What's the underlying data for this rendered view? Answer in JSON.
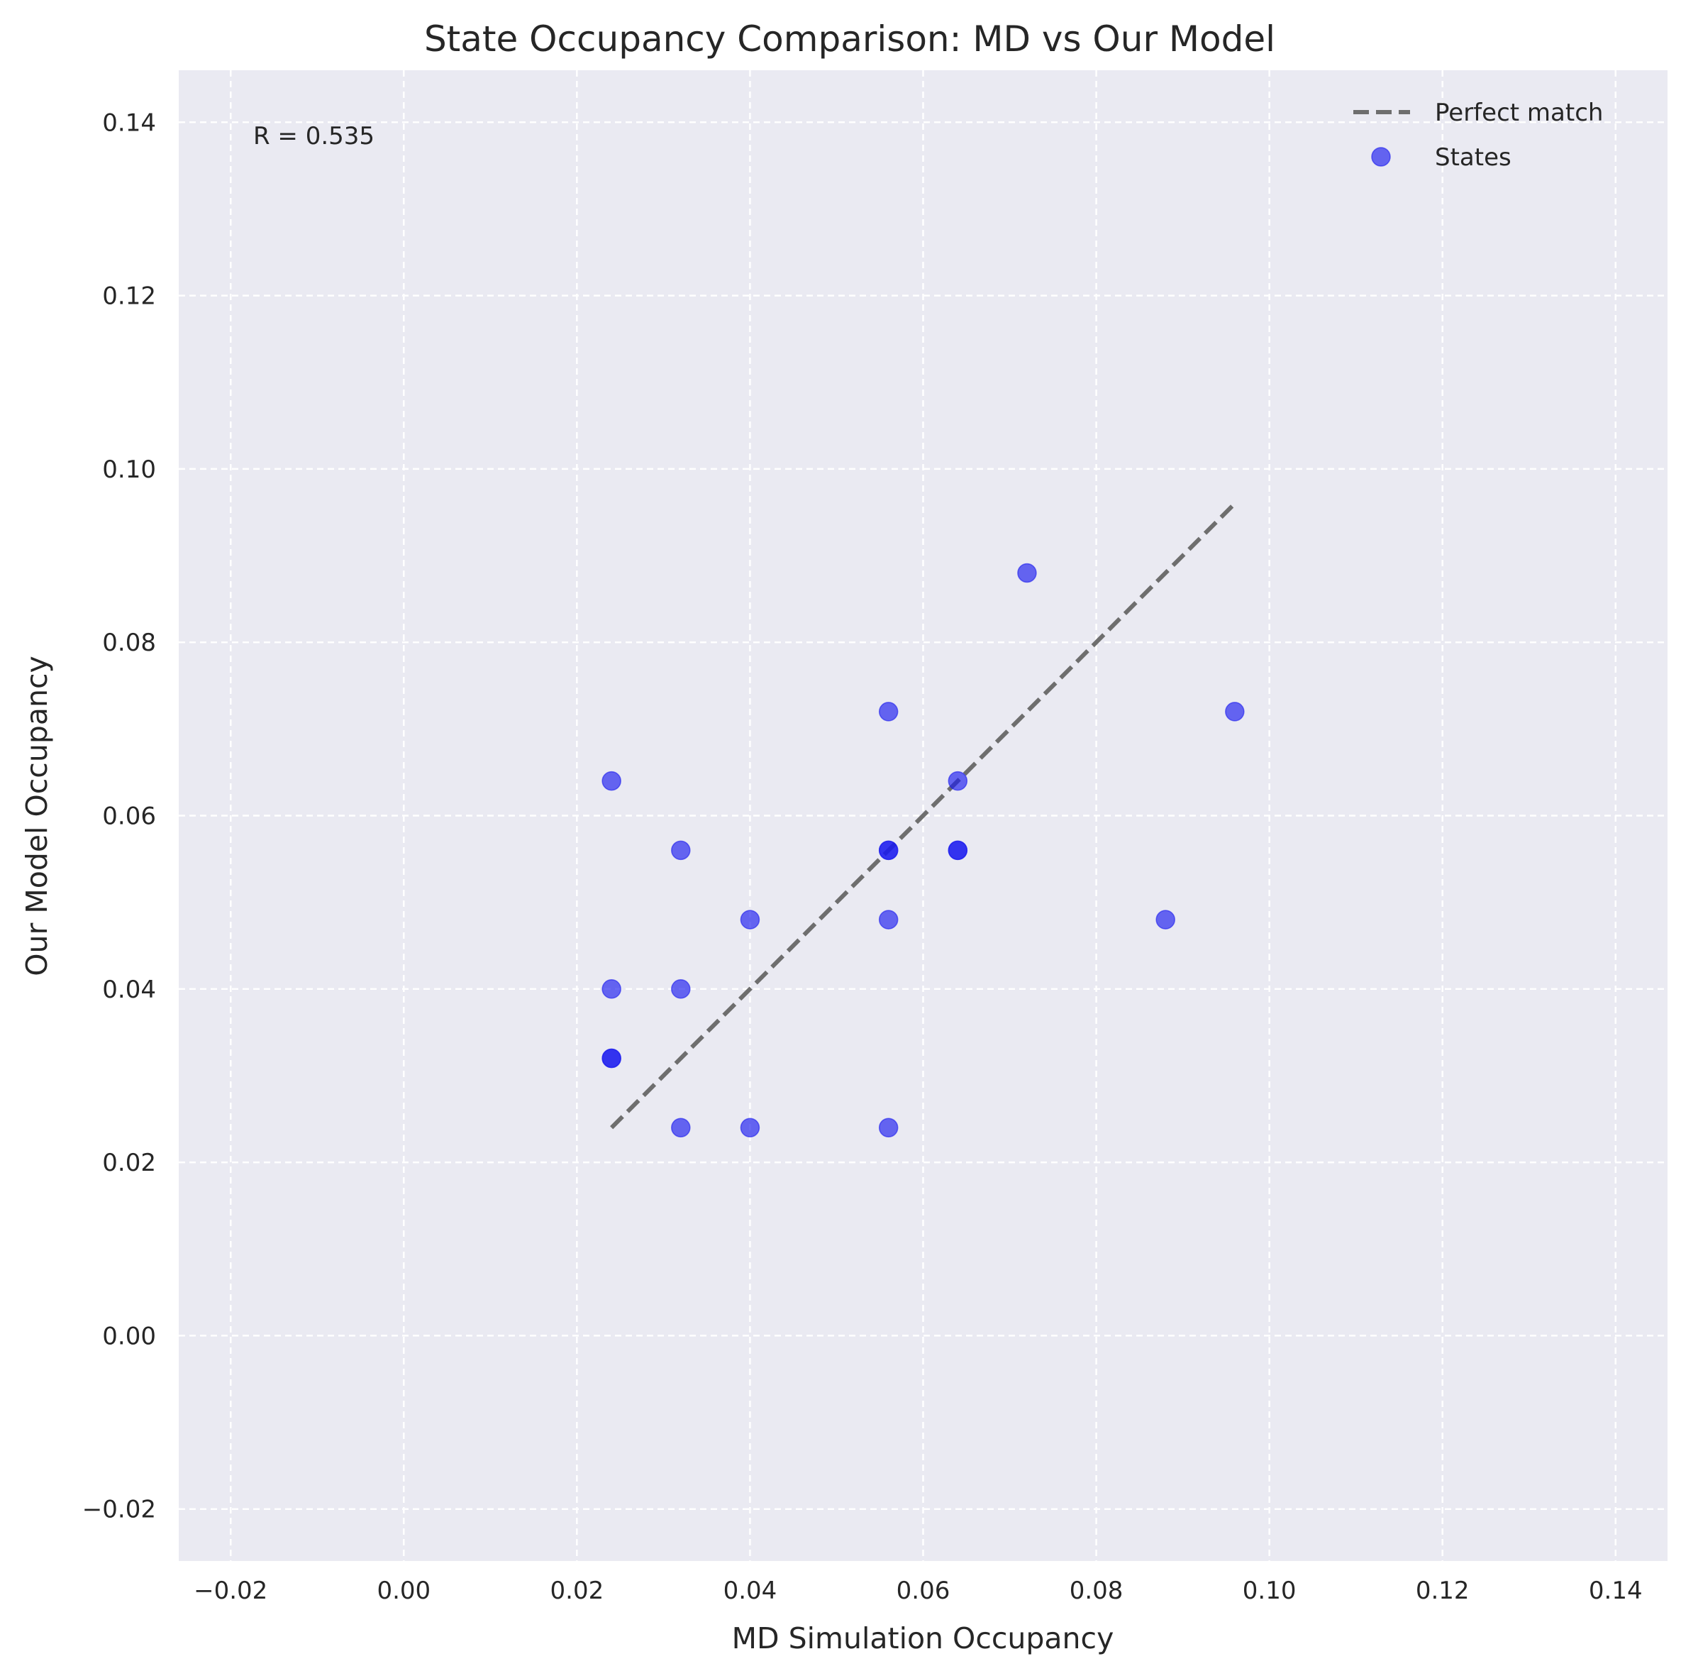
{
  "chart_data": {
    "type": "scatter",
    "title": "State Occupancy Comparison: MD vs Our Model",
    "xlabel": "MD Simulation Occupancy",
    "ylabel": "Our Model Occupancy",
    "xlim": [
      -0.026,
      0.146
    ],
    "ylim": [
      -0.026,
      0.146
    ],
    "xticks": [
      -0.02,
      0.0,
      0.02,
      0.04,
      0.06,
      0.08,
      0.1,
      0.12,
      0.14
    ],
    "yticks": [
      -0.02,
      0.0,
      0.02,
      0.04,
      0.06,
      0.08,
      0.1,
      0.12,
      0.14
    ],
    "xtick_labels": [
      "−0.02",
      "0.00",
      "0.02",
      "0.04",
      "0.06",
      "0.08",
      "0.10",
      "0.12",
      "0.14"
    ],
    "ytick_labels": [
      "−0.02",
      "0.00",
      "0.02",
      "0.04",
      "0.06",
      "0.08",
      "0.10",
      "0.12",
      "0.14"
    ],
    "grid": true,
    "legend_position": "top-right",
    "annotation": "R = 0.535",
    "series": [
      {
        "name": "Perfect match",
        "kind": "line",
        "style": "dashed",
        "color": "#6e6e6e",
        "x": [
          0.024,
          0.096
        ],
        "y": [
          0.024,
          0.096
        ]
      },
      {
        "name": "States",
        "kind": "scatter",
        "color": "#1a1aee",
        "points": [
          {
            "x": 0.072,
            "y": 0.088
          },
          {
            "x": 0.056,
            "y": 0.072
          },
          {
            "x": 0.096,
            "y": 0.072
          },
          {
            "x": 0.024,
            "y": 0.064
          },
          {
            "x": 0.064,
            "y": 0.064
          },
          {
            "x": 0.032,
            "y": 0.056
          },
          {
            "x": 0.056,
            "y": 0.056
          },
          {
            "x": 0.056,
            "y": 0.056
          },
          {
            "x": 0.064,
            "y": 0.056
          },
          {
            "x": 0.064,
            "y": 0.056
          },
          {
            "x": 0.04,
            "y": 0.048
          },
          {
            "x": 0.056,
            "y": 0.048
          },
          {
            "x": 0.088,
            "y": 0.048
          },
          {
            "x": 0.024,
            "y": 0.04
          },
          {
            "x": 0.032,
            "y": 0.04
          },
          {
            "x": 0.024,
            "y": 0.032
          },
          {
            "x": 0.024,
            "y": 0.032
          },
          {
            "x": 0.032,
            "y": 0.024
          },
          {
            "x": 0.04,
            "y": 0.024
          },
          {
            "x": 0.056,
            "y": 0.024
          }
        ]
      }
    ]
  }
}
